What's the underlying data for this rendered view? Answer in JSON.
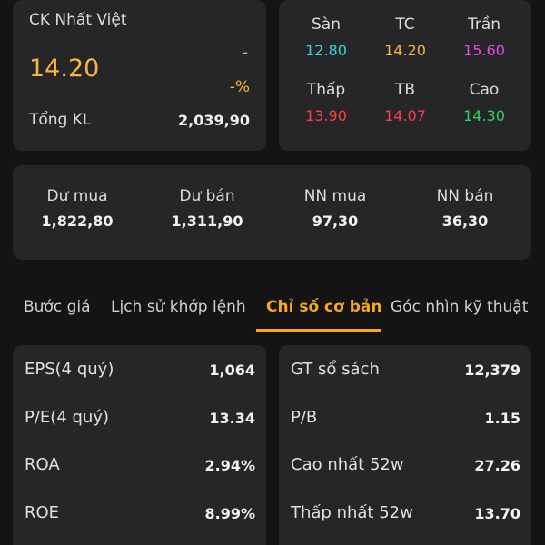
{
  "stock": {
    "name": "CK Nhất Việt",
    "price": "14.20",
    "change": "-",
    "change_pct": "-%",
    "volume_label": "Tổng KL",
    "volume_value": "2,039,90"
  },
  "levels": {
    "floor": {
      "label": "Sàn",
      "value": "12.80",
      "color": "#3fd4dc"
    },
    "ref": {
      "label": "TC",
      "value": "14.20",
      "color": "#f5b63f"
    },
    "ceiling": {
      "label": "Trần",
      "value": "15.60",
      "color": "#e64ce6"
    },
    "low": {
      "label": "Thấp",
      "value": "13.90",
      "color": "#ff3b4a"
    },
    "avg": {
      "label": "TB",
      "value": "14.07",
      "color": "#ff3b4a"
    },
    "high": {
      "label": "Cao",
      "value": "14.30",
      "color": "#32d35a"
    }
  },
  "flow": {
    "bid_label": "Dư mua",
    "bid_value": "1,822,80",
    "ask_label": "Dư bán",
    "ask_value": "1,311,90",
    "foreign_buy_label": "NN mua",
    "foreign_buy_value": "97,30",
    "foreign_sell_label": "NN bán",
    "foreign_sell_value": "36,30"
  },
  "tabs": [
    {
      "label": "Bước giá"
    },
    {
      "label": "Lịch sử khớp lệnh"
    },
    {
      "label": "Chỉ số cơ bản",
      "active": true
    },
    {
      "label": "Góc nhìn kỹ thuật"
    }
  ],
  "fundamentals_left": [
    {
      "label": "EPS(4 quý)",
      "value": "1,064"
    },
    {
      "label": "P/E(4 quý)",
      "value": "13.34"
    },
    {
      "label": "ROA",
      "value": "2.94%"
    },
    {
      "label": "ROE",
      "value": "8.99%"
    }
  ],
  "fundamentals_right": [
    {
      "label": "GT sổ sách",
      "value": "12,379"
    },
    {
      "label": "P/B",
      "value": "1.15"
    },
    {
      "label": "Cao nhất 52w",
      "value": "27.26"
    },
    {
      "label": "Thấp nhất 52w",
      "value": "13.70"
    }
  ],
  "colors": {
    "accent": "#f5a623",
    "price": "#f5b63f",
    "background": "#141414",
    "card": "#262628"
  }
}
